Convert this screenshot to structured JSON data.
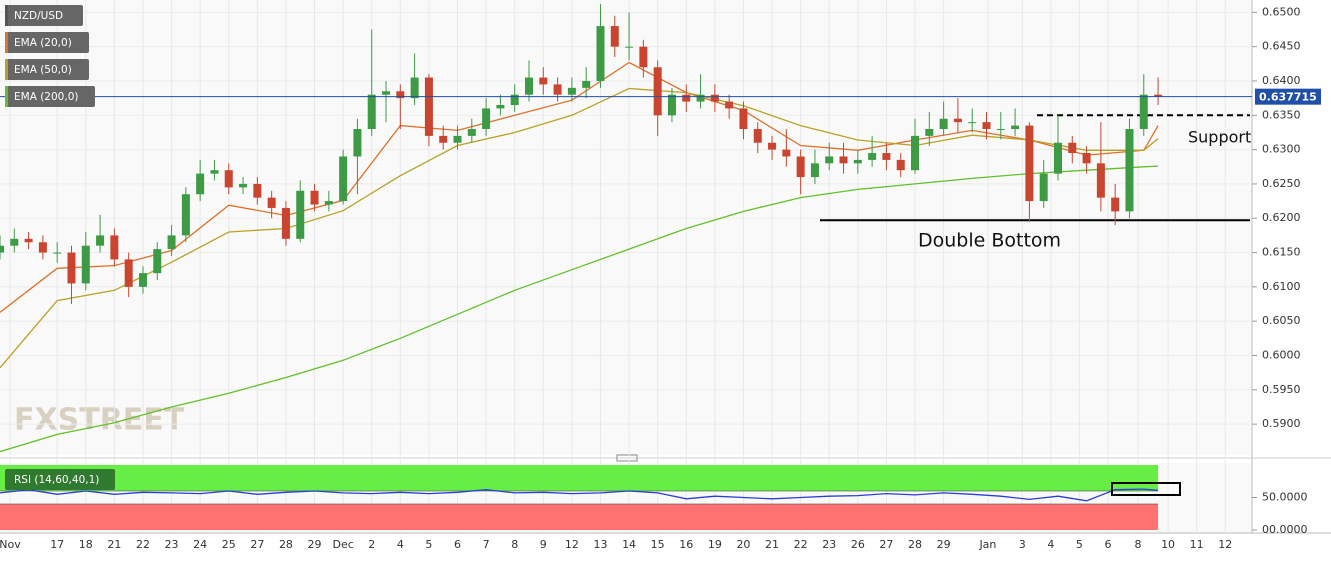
{
  "chart_data": [
    {
      "type": "candlestick",
      "xlim": [
        0,
        43.75
      ],
      "ylim": [
        0.5855,
        0.6518
      ],
      "grid": true,
      "up_color": "#3d9a45",
      "down_color": "#c9452f",
      "xticks": [
        {
          "value": 0.35,
          "label": "Nov"
        },
        {
          "value": 2,
          "label": "17"
        },
        {
          "value": 3,
          "label": "18"
        },
        {
          "value": 4,
          "label": "21"
        },
        {
          "value": 5,
          "label": "22"
        },
        {
          "value": 6,
          "label": "23"
        },
        {
          "value": 7,
          "label": "24"
        },
        {
          "value": 8,
          "label": "25"
        },
        {
          "value": 9,
          "label": "27"
        },
        {
          "value": 10,
          "label": "28"
        },
        {
          "value": 11,
          "label": "29"
        },
        {
          "value": 12,
          "label": "Dec"
        },
        {
          "value": 13,
          "label": "2"
        },
        {
          "value": 14,
          "label": "4"
        },
        {
          "value": 15,
          "label": "5"
        },
        {
          "value": 16,
          "label": "6"
        },
        {
          "value": 17,
          "label": "7"
        },
        {
          "value": 18,
          "label": "8"
        },
        {
          "value": 19,
          "label": "9"
        },
        {
          "value": 20,
          "label": "12"
        },
        {
          "value": 21,
          "label": "13"
        },
        {
          "value": 22,
          "label": "14"
        },
        {
          "value": 23,
          "label": "15"
        },
        {
          "value": 24,
          "label": "16"
        },
        {
          "value": 25,
          "label": "19"
        },
        {
          "value": 26,
          "label": "20"
        },
        {
          "value": 27,
          "label": "21"
        },
        {
          "value": 28,
          "label": "22"
        },
        {
          "value": 29,
          "label": "23"
        },
        {
          "value": 30,
          "label": "26"
        },
        {
          "value": 31,
          "label": "27"
        },
        {
          "value": 32,
          "label": "28"
        },
        {
          "value": 33,
          "label": "29"
        },
        {
          "value": 34.55,
          "label": "Jan"
        },
        {
          "value": 35.75,
          "label": "3"
        },
        {
          "value": 36.75,
          "label": "4"
        },
        {
          "value": 37.75,
          "label": "5"
        },
        {
          "value": 38.75,
          "label": "6"
        },
        {
          "value": 39.8,
          "label": "8"
        },
        {
          "value": 40.85,
          "label": "10"
        },
        {
          "value": 41.85,
          "label": "11"
        },
        {
          "value": 42.85,
          "label": "12"
        }
      ],
      "yticks": [
        {
          "value": 0.65,
          "label": "0.6500"
        },
        {
          "value": 0.645,
          "label": "0.6450"
        },
        {
          "value": 0.64,
          "label": "0.6400"
        },
        {
          "value": 0.635,
          "label": "0.6350"
        },
        {
          "value": 0.63,
          "label": "0.6300"
        },
        {
          "value": 0.625,
          "label": "0.6250"
        },
        {
          "value": 0.62,
          "label": "0.6200"
        },
        {
          "value": 0.615,
          "label": "0.6150"
        },
        {
          "value": 0.61,
          "label": "0.6100"
        },
        {
          "value": 0.605,
          "label": "0.6050"
        },
        {
          "value": 0.6,
          "label": "0.6000"
        },
        {
          "value": 0.595,
          "label": "0.5950"
        },
        {
          "value": 0.59,
          "label": "0.5900"
        }
      ],
      "candles": {
        "name": "NZD/USD",
        "x": [
          0,
          0.5,
          1,
          1.5,
          2,
          2.5,
          3,
          3.5,
          4,
          4.5,
          5,
          5.5,
          6,
          6.5,
          7,
          7.5,
          8,
          8.5,
          9,
          9.5,
          10,
          10.5,
          11,
          11.5,
          12,
          12.5,
          13,
          13.5,
          14,
          14.5,
          15,
          15.5,
          16,
          16.5,
          17,
          17.5,
          18,
          18.5,
          19,
          19.5,
          20,
          20.5,
          21,
          21.5,
          22,
          22.5,
          23,
          23.5,
          24,
          24.5,
          25,
          25.5,
          26,
          26.5,
          27,
          27.5,
          28,
          28.5,
          29,
          29.5,
          30,
          30.5,
          31,
          31.5,
          32,
          32.5,
          33,
          33.5,
          34,
          34.5,
          35,
          35.5,
          36,
          36.5,
          37,
          37.5,
          38,
          38.5,
          39,
          39.5,
          40,
          40.5
        ],
        "open": [
          0.615,
          0.616,
          0.617,
          0.6165,
          0.615,
          0.615,
          0.6105,
          0.616,
          0.6175,
          0.614,
          0.61,
          0.612,
          0.6155,
          0.6175,
          0.6235,
          0.6265,
          0.627,
          0.6245,
          0.625,
          0.623,
          0.6215,
          0.617,
          0.624,
          0.622,
          0.6225,
          0.629,
          0.633,
          0.638,
          0.6385,
          0.6375,
          0.6405,
          0.632,
          0.631,
          0.632,
          0.633,
          0.636,
          0.6365,
          0.638,
          0.6405,
          0.6395,
          0.638,
          0.639,
          0.64,
          0.648,
          0.645,
          0.645,
          0.642,
          0.635,
          0.638,
          0.637,
          0.638,
          0.637,
          0.636,
          0.633,
          0.631,
          0.63,
          0.629,
          0.626,
          0.628,
          0.629,
          0.628,
          0.6285,
          0.6295,
          0.6285,
          0.627,
          0.632,
          0.633,
          0.6345,
          0.634,
          0.634,
          0.633,
          0.633,
          0.6335,
          0.6225,
          0.6265,
          0.631,
          0.6295,
          0.628,
          0.623,
          0.621,
          0.633,
          0.638
        ],
        "high": [
          0.6175,
          0.6185,
          0.618,
          0.6175,
          0.6165,
          0.616,
          0.618,
          0.6205,
          0.6185,
          0.615,
          0.613,
          0.6165,
          0.619,
          0.6245,
          0.6285,
          0.6285,
          0.628,
          0.626,
          0.626,
          0.624,
          0.6225,
          0.6255,
          0.625,
          0.624,
          0.63,
          0.6345,
          0.6475,
          0.64,
          0.6395,
          0.644,
          0.641,
          0.6335,
          0.6335,
          0.6345,
          0.6375,
          0.638,
          0.6395,
          0.643,
          0.642,
          0.6405,
          0.6405,
          0.642,
          0.6512,
          0.6495,
          0.65,
          0.646,
          0.643,
          0.639,
          0.6395,
          0.641,
          0.6395,
          0.638,
          0.637,
          0.634,
          0.632,
          0.633,
          0.63,
          0.63,
          0.631,
          0.631,
          0.63,
          0.632,
          0.631,
          0.6295,
          0.6345,
          0.6355,
          0.637,
          0.6375,
          0.636,
          0.6355,
          0.6355,
          0.636,
          0.634,
          0.6285,
          0.635,
          0.632,
          0.6305,
          0.634,
          0.625,
          0.6345,
          0.641,
          0.6405
        ],
        "low": [
          0.614,
          0.615,
          0.6155,
          0.614,
          0.6135,
          0.6075,
          0.6095,
          0.615,
          0.613,
          0.6085,
          0.609,
          0.611,
          0.6145,
          0.6165,
          0.6225,
          0.6255,
          0.6235,
          0.6235,
          0.622,
          0.62,
          0.616,
          0.6165,
          0.621,
          0.621,
          0.622,
          0.6235,
          0.632,
          0.634,
          0.633,
          0.6365,
          0.6305,
          0.63,
          0.63,
          0.631,
          0.632,
          0.635,
          0.6355,
          0.637,
          0.638,
          0.637,
          0.637,
          0.6375,
          0.639,
          0.6435,
          0.643,
          0.6405,
          0.632,
          0.634,
          0.6355,
          0.636,
          0.6355,
          0.6345,
          0.6315,
          0.6295,
          0.6285,
          0.6275,
          0.6235,
          0.625,
          0.627,
          0.6265,
          0.6265,
          0.6275,
          0.627,
          0.626,
          0.6265,
          0.6305,
          0.632,
          0.6325,
          0.6325,
          0.6315,
          0.6315,
          0.632,
          0.6195,
          0.6215,
          0.6255,
          0.628,
          0.6265,
          0.621,
          0.619,
          0.62,
          0.632,
          0.6365
        ],
        "close": [
          0.616,
          0.617,
          0.6165,
          0.615,
          0.615,
          0.6105,
          0.616,
          0.6175,
          0.614,
          0.61,
          0.612,
          0.6155,
          0.6175,
          0.6235,
          0.6265,
          0.627,
          0.6245,
          0.625,
          0.623,
          0.6215,
          0.617,
          0.624,
          0.622,
          0.6225,
          0.629,
          0.633,
          0.638,
          0.6385,
          0.6375,
          0.6405,
          0.632,
          0.631,
          0.632,
          0.633,
          0.636,
          0.6365,
          0.638,
          0.6405,
          0.6395,
          0.638,
          0.639,
          0.64,
          0.648,
          0.645,
          0.645,
          0.642,
          0.635,
          0.638,
          0.637,
          0.638,
          0.637,
          0.636,
          0.633,
          0.631,
          0.63,
          0.629,
          0.626,
          0.628,
          0.629,
          0.628,
          0.6285,
          0.6295,
          0.6285,
          0.627,
          0.632,
          0.633,
          0.6345,
          0.634,
          0.634,
          0.633,
          0.633,
          0.6335,
          0.6225,
          0.6265,
          0.631,
          0.6295,
          0.628,
          0.623,
          0.621,
          0.633,
          0.638,
          0.6377
        ]
      },
      "series": [
        {
          "name": "EMA (20,0)",
          "color": "#e0702a",
          "x": [
            0,
            2,
            4,
            6,
            8,
            10,
            12,
            14,
            16,
            18,
            20,
            22,
            24,
            26,
            28,
            30,
            32,
            34,
            36,
            38,
            40,
            40.5
          ],
          "values": [
            0.6063,
            0.6127,
            0.6131,
            0.6153,
            0.6219,
            0.6204,
            0.6226,
            0.6335,
            0.6328,
            0.635,
            0.6372,
            0.6427,
            0.6383,
            0.6357,
            0.6306,
            0.6299,
            0.6314,
            0.6328,
            0.6314,
            0.6292,
            0.6299,
            0.6335
          ]
        },
        {
          "name": "EMA (50,0)",
          "color": "#b8a226",
          "x": [
            0,
            2,
            4,
            6,
            8,
            10,
            12,
            14,
            16,
            18,
            20,
            22,
            24,
            26,
            28,
            30,
            32,
            34,
            36,
            38,
            40,
            40.5
          ],
          "values": [
            0.5982,
            0.608,
            0.6095,
            0.6136,
            0.618,
            0.6185,
            0.6211,
            0.6262,
            0.6306,
            0.6325,
            0.635,
            0.6389,
            0.6383,
            0.6364,
            0.6335,
            0.6314,
            0.6306,
            0.6321,
            0.6314,
            0.6299,
            0.6299,
            0.6316
          ]
        },
        {
          "name": "EMA (200,0)",
          "color": "#62c02a",
          "x": [
            0,
            2,
            4,
            6,
            8,
            10,
            12,
            14,
            16,
            18,
            20,
            22,
            24,
            26,
            28,
            30,
            32,
            34,
            36,
            38,
            40,
            40.5
          ],
          "values": [
            0.586,
            0.5885,
            0.5902,
            0.5925,
            0.5945,
            0.5968,
            0.5993,
            0.6025,
            0.606,
            0.6095,
            0.6125,
            0.6155,
            0.6185,
            0.621,
            0.623,
            0.6242,
            0.625,
            0.6258,
            0.6265,
            0.627,
            0.6275,
            0.6276
          ]
        }
      ],
      "last_price": 0.637715,
      "last_price_color": "#1f4fa8",
      "annotations": [
        {
          "text": "Support",
          "value": 0.635
        },
        {
          "text": "Double Bottom",
          "value": 0.6197
        }
      ],
      "watermark": "FXSTREET"
    },
    {
      "type": "line",
      "label": "RSI (14,60,40,1)",
      "xlim": [
        0,
        43.75
      ],
      "ylim": [
        0,
        100
      ],
      "yticks": [
        {
          "value": 50,
          "label": "50.0000"
        },
        {
          "value": 0,
          "label": "00.0000"
        }
      ],
      "upper_band": 60,
      "lower_band": 40,
      "upper_color": "#66ee44",
      "lower_color": "#ff7272",
      "series": [
        {
          "name": "RSI",
          "color": "#2a3fd6",
          "x": [
            0,
            1,
            2,
            3,
            4,
            5,
            6,
            7,
            8,
            9,
            10,
            11,
            12,
            13,
            14,
            15,
            16,
            17,
            18,
            19,
            20,
            21,
            22,
            23,
            24,
            25,
            26,
            27,
            28,
            29,
            30,
            31,
            32,
            33,
            34,
            35,
            36,
            37,
            38,
            39,
            40,
            40.5
          ],
          "values": [
            57,
            62,
            55,
            60,
            55,
            58,
            57,
            56,
            60,
            55,
            58,
            60,
            57,
            56,
            58,
            56,
            58,
            62,
            57,
            58,
            56,
            57,
            60,
            57,
            48,
            52,
            50,
            48,
            50,
            52,
            53,
            56,
            54,
            57,
            55,
            52,
            47,
            52,
            45,
            62,
            63,
            61
          ]
        }
      ]
    }
  ]
}
